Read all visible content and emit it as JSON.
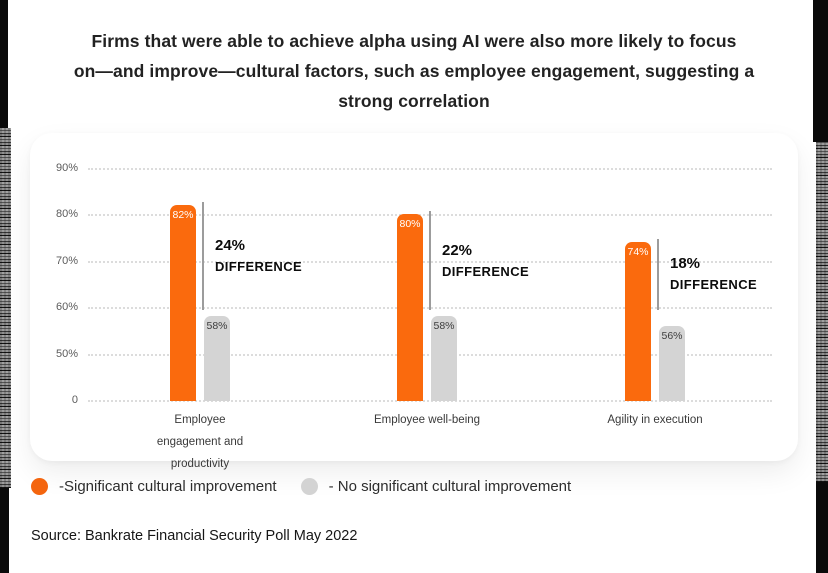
{
  "header": {
    "title_lines": [
      "Firms that were able to achieve alpha using AI were also more likely to focus",
      "on—and improve—cultural factors, such as employee engagement, suggesting a",
      "strong correlation"
    ]
  },
  "chart_data": {
    "type": "bar",
    "title": "Firms that were able to achieve alpha using AI were also more likely to focus on—and improve—cultural factors, such as employee engagement, suggesting a strong correlation",
    "categories": [
      "Employee engagement and productivity",
      "Employee well-being",
      "Agility in execution"
    ],
    "series": [
      {
        "name": "Significant cultural improvement",
        "color": "#fa6a0d",
        "values": [
          82,
          80,
          74
        ],
        "value_labels": [
          "82%",
          "80%",
          "74%"
        ]
      },
      {
        "name": "No significant cultural improvement",
        "color": "#d4d4d4",
        "values": [
          58,
          58,
          56
        ],
        "value_labels": [
          "58%",
          "58%",
          "56%"
        ]
      }
    ],
    "differences": [
      {
        "value_label": "24%",
        "caption": "DIFFERENCE"
      },
      {
        "value_label": "22%",
        "caption": "DIFFERENCE"
      },
      {
        "value_label": "18%",
        "caption": "DIFFERENCE"
      }
    ],
    "y_axis": {
      "ticks": [
        {
          "label": "90%",
          "value": 90
        },
        {
          "label": "80%",
          "value": 80
        },
        {
          "label": "70%",
          "value": 70
        },
        {
          "label": "60%",
          "value": 60
        },
        {
          "label": "50%",
          "value": 50
        },
        {
          "label": "0",
          "value": 0
        }
      ],
      "note": "axis compressed below 50% (0 to 50% spans one gridline step)"
    },
    "ylim": [
      0,
      95
    ],
    "grid": "horizontal dotted",
    "legend_position": "bottom-left outside chart card"
  },
  "legend": {
    "items": [
      {
        "label": "-Significant cultural improvement",
        "color": "#f4650e"
      },
      {
        "label": "- No significant cultural improvement",
        "color": "#d3d3d3"
      }
    ]
  },
  "source": "Source: Bankrate Financial Security Poll May 2022",
  "colors": {
    "bar_orange": "#fa6a0d",
    "bar_gray": "#d4d4d4",
    "title_text": "#222222",
    "axis_text": "#5b5b5b",
    "category_text": "#3a3a3a",
    "difference_text": "#0c0c0c",
    "difference_line": "#9c9c9c",
    "gridline": "#dcdcdc",
    "card_background": "#ffffff",
    "page_background": "#ffffff"
  }
}
